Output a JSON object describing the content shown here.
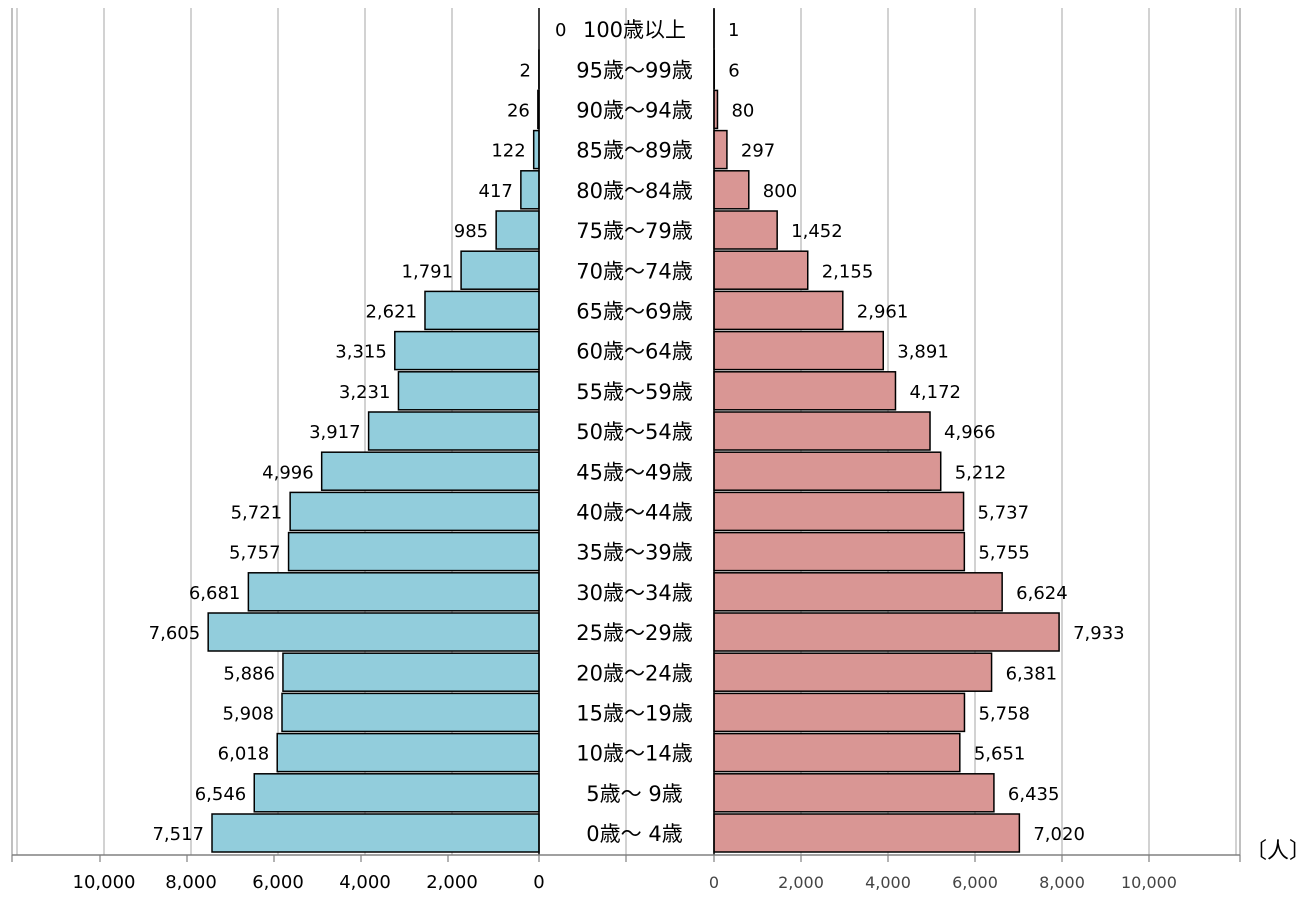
{
  "chart_data": {
    "type": "bar",
    "categories": [
      "100歳以上",
      "95歳〜99歳",
      "90歳〜94歳",
      "85歳〜89歳",
      "80歳〜84歳",
      "75歳〜79歳",
      "70歳〜74歳",
      "65歳〜69歳",
      "60歳〜64歳",
      "55歳〜59歳",
      "50歳〜54歳",
      "45歳〜49歳",
      "40歳〜44歳",
      "35歳〜39歳",
      "30歳〜34歳",
      "25歳〜29歳",
      "20歳〜24歳",
      "15歳〜19歳",
      "10歳〜14歳",
      "5歳〜 9歳",
      "0歳〜 4歳"
    ],
    "series": [
      {
        "values": [
          0,
          2,
          26,
          122,
          417,
          985,
          1791,
          2621,
          3315,
          3231,
          3917,
          4996,
          5721,
          5757,
          6681,
          7605,
          5886,
          5908,
          6018,
          6546,
          7517
        ],
        "labels": [
          "0",
          "2",
          "26",
          "122",
          "417",
          "985",
          "1,791",
          "2,621",
          "3,315",
          "3,231",
          "3,917",
          "4,996",
          "5,721",
          "5,757",
          "6,681",
          "7,605",
          "5,886",
          "5,908",
          "6,018",
          "6,546",
          "7,517"
        ],
        "color": "#92cddc"
      },
      {
        "values": [
          1,
          6,
          80,
          297,
          800,
          1452,
          2155,
          2961,
          3891,
          4172,
          4966,
          5212,
          5737,
          5755,
          6624,
          7933,
          6381,
          5758,
          5651,
          6435,
          7020
        ],
        "labels": [
          "1",
          "6",
          "80",
          "297",
          "800",
          "1,452",
          "2,155",
          "2,961",
          "3,891",
          "4,172",
          "4,966",
          "5,212",
          "5,737",
          "5,755",
          "6,624",
          "7,933",
          "6,381",
          "5,758",
          "5,651",
          "6,435",
          "7,020"
        ],
        "color": "#d99694"
      }
    ],
    "left_axis": {
      "ticks": [
        10000,
        8000,
        6000,
        4000,
        2000,
        0
      ],
      "tick_labels": [
        "10,000",
        "8,000",
        "6,000",
        "4,000",
        "2,000",
        "0"
      ]
    },
    "right_axis": {
      "ticks": [
        0,
        2000,
        4000,
        6000,
        8000,
        10000
      ],
      "tick_labels": [
        "0",
        "2,000",
        "4,000",
        "6,000",
        "8,000",
        "10,000"
      ]
    },
    "xlim": [
      0,
      12000
    ],
    "unit": "〔人〕",
    "grid": true
  }
}
